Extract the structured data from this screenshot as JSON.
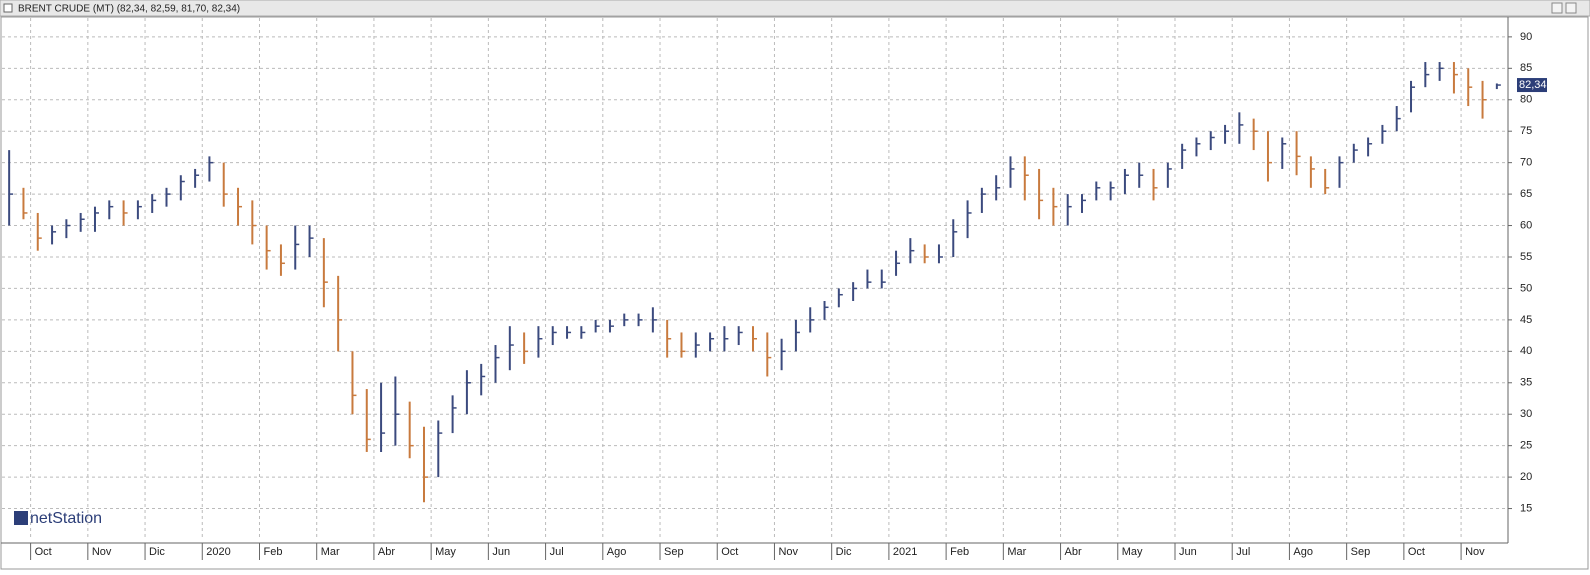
{
  "chart_data": {
    "type": "ohlc",
    "title": "BRENT CRUDE (MT) (82,34, 82,59, 81,70, 82,34)",
    "watermark": "netStation",
    "categories": [
      null,
      null,
      "Oct",
      null,
      null,
      null,
      "Nov",
      null,
      null,
      null,
      "Dic",
      null,
      null,
      null,
      "2020",
      null,
      null,
      null,
      "Feb",
      null,
      null,
      null,
      "Mar",
      null,
      null,
      null,
      "Abr",
      null,
      null,
      null,
      "May",
      null,
      null,
      null,
      "Jun",
      null,
      null,
      null,
      "Jul",
      null,
      null,
      null,
      "Ago",
      null,
      null,
      null,
      "Sep",
      null,
      null,
      null,
      "Oct",
      null,
      null,
      null,
      "Nov",
      null,
      null,
      null,
      "Dic",
      null,
      null,
      null,
      "2021",
      null,
      null,
      null,
      "Feb",
      null,
      null,
      null,
      "Mar",
      null,
      null,
      null,
      "Abr",
      null,
      null,
      null,
      "May",
      null,
      null,
      null,
      "Jun",
      null,
      null,
      null,
      "Jul",
      null,
      null,
      null,
      "Ago",
      null,
      null,
      null,
      "Sep",
      null,
      null,
      null,
      "Oct",
      null,
      null,
      null,
      "Nov",
      null,
      null
    ],
    "high": [
      72,
      66,
      62,
      60,
      61,
      62,
      63,
      64,
      64,
      64,
      65,
      66,
      68,
      69,
      71,
      70,
      66,
      64,
      60,
      57,
      60,
      60,
      58,
      52,
      40,
      34,
      35,
      36,
      32,
      28,
      29,
      33,
      37,
      38,
      41,
      44,
      43,
      44,
      44,
      44,
      44,
      45,
      45,
      46,
      46,
      47,
      45,
      43,
      43,
      43,
      44,
      44,
      44,
      43,
      42,
      45,
      47,
      48,
      50,
      51,
      53,
      53,
      56,
      58,
      57,
      57,
      61,
      64,
      66,
      68,
      71,
      71,
      69,
      66,
      65,
      65,
      67,
      67,
      69,
      70,
      69,
      70,
      73,
      74,
      75,
      76,
      78,
      77,
      75,
      74,
      75,
      71,
      69,
      71,
      73,
      74,
      76,
      79,
      83,
      86,
      86,
      86,
      85,
      83,
      82.59
    ],
    "low": [
      60,
      61,
      56,
      57,
      58,
      59,
      59,
      61,
      60,
      61,
      62,
      63,
      64,
      66,
      67,
      63,
      60,
      57,
      53,
      52,
      53,
      55,
      47,
      40,
      30,
      24,
      24,
      25,
      23,
      16,
      20,
      27,
      30,
      33,
      35,
      37,
      38,
      39,
      41,
      42,
      42,
      43,
      43,
      44,
      44,
      43,
      39,
      39,
      39,
      40,
      40,
      41,
      40,
      36,
      37,
      40,
      43,
      45,
      47,
      48,
      50,
      50,
      52,
      54,
      54,
      54,
      55,
      58,
      62,
      64,
      66,
      64,
      61,
      60,
      60,
      62,
      64,
      64,
      65,
      66,
      64,
      66,
      69,
      71,
      72,
      73,
      73,
      72,
      67,
      69,
      68,
      66,
      65,
      66,
      70,
      71,
      73,
      75,
      78,
      82,
      83,
      81,
      79,
      77,
      81.7
    ],
    "close": [
      65,
      62,
      58,
      59,
      60,
      61,
      62,
      63,
      62,
      63,
      64,
      65,
      67,
      68,
      70,
      65,
      63,
      60,
      56,
      54,
      57,
      58,
      51,
      45,
      33,
      26,
      27,
      30,
      25,
      20,
      27,
      31,
      35,
      36,
      39,
      41,
      40,
      42,
      43,
      43,
      43,
      44,
      44,
      45,
      45,
      45,
      42,
      40,
      41,
      42,
      42,
      43,
      42,
      39,
      40,
      43,
      45,
      47,
      49,
      50,
      51,
      51,
      54,
      56,
      55,
      55,
      59,
      62,
      65,
      66,
      69,
      68,
      64,
      63,
      63,
      64,
      66,
      66,
      68,
      68,
      66,
      69,
      72,
      73,
      74,
      75,
      76,
      75,
      70,
      73,
      71,
      69,
      66,
      70,
      72,
      73,
      75,
      77,
      82,
      84,
      85,
      84,
      82,
      80,
      82.34
    ],
    "up_color": "#3b4a7e",
    "down_color": "#c87a3e",
    "price_marker": {
      "value": 82.34,
      "label": "82,34"
    },
    "ylim": [
      10,
      93
    ],
    "yticks": [
      15,
      20,
      25,
      30,
      35,
      40,
      45,
      50,
      55,
      60,
      65,
      70,
      75,
      80,
      85,
      90
    ],
    "grid": true
  }
}
